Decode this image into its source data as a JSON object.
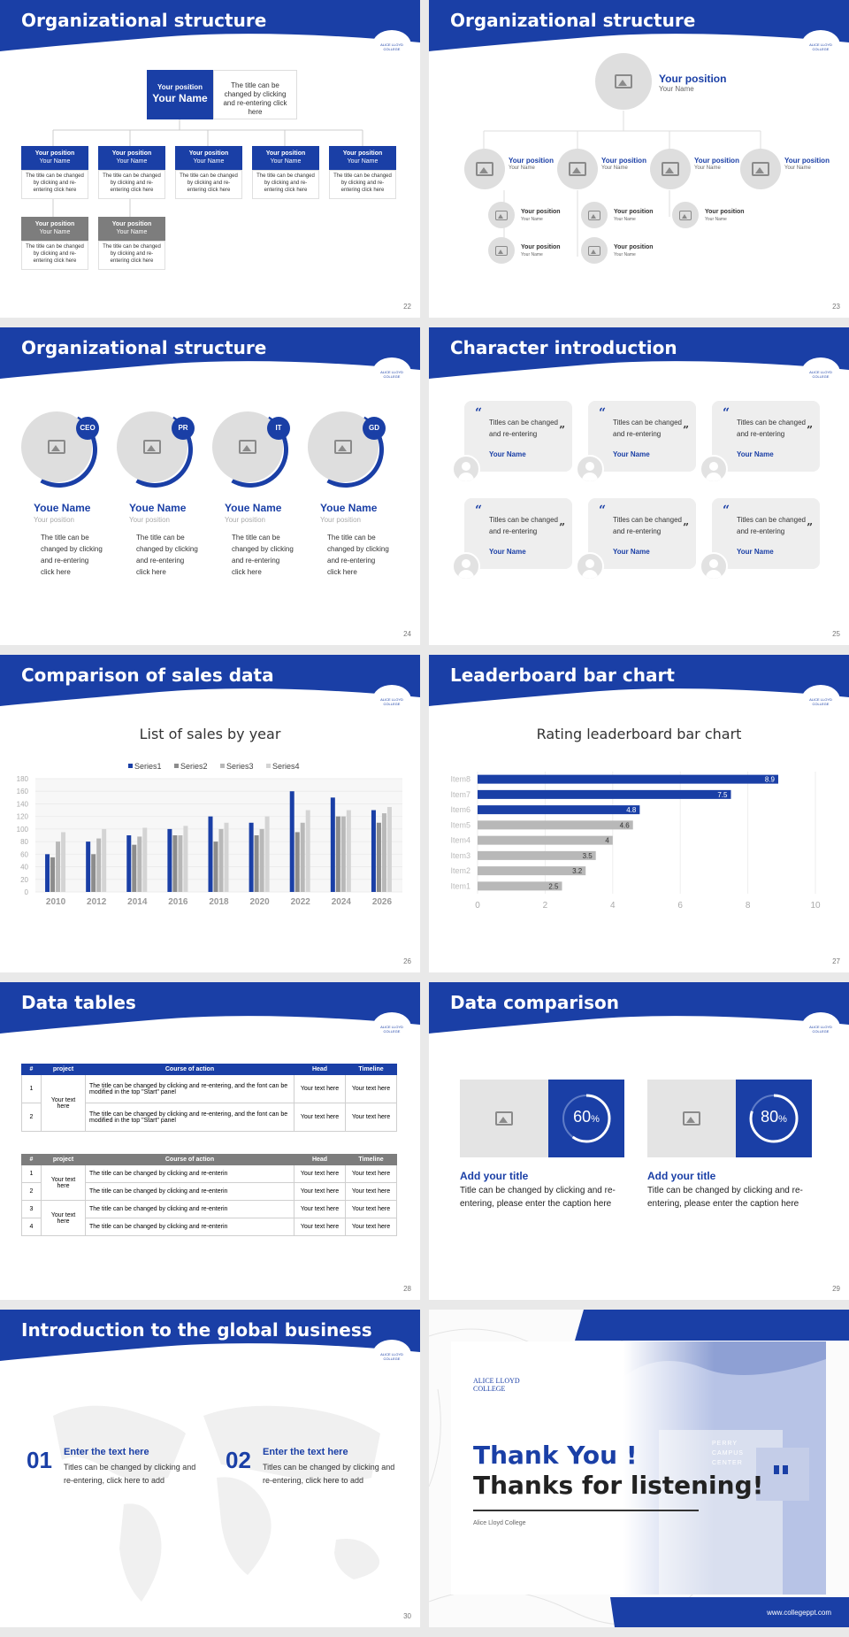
{
  "header_texts": {
    "s22": "Organizational structure",
    "s23": "Organizational structure",
    "s24": "Organizational structure",
    "s25": "Character introduction",
    "s26": "Comparison of sales data",
    "s27": "Leaderboard bar chart",
    "s28": "Data tables",
    "s29": "Data comparison",
    "s30": "Introduction to the global business"
  },
  "page_numbers": {
    "s22": "22",
    "s23": "23",
    "s24": "24",
    "s25": "25",
    "s26": "26",
    "s27": "27",
    "s28": "28",
    "s29": "29",
    "s30": "30"
  },
  "logo_text": "ALICE LLOYD COLLEGE",
  "s22": {
    "top_position": "Your position",
    "top_name": "Your Name",
    "top_desc": "The title can be changed by clicking and re-entering click here",
    "box_position": "Your position",
    "box_name": "Your Name",
    "box_desc": "The title can be changed by clicking and re-entering click here"
  },
  "s23": {
    "top_position": "Your position",
    "top_name": "Your Name",
    "mid_position": "Your position",
    "mid_name": "Your Name",
    "sub_position": "Your position",
    "sub_name": "Your Name"
  },
  "s24": {
    "members": [
      {
        "badge": "CEO",
        "name": "Youe Name",
        "position": "Your position",
        "desc": "The title can be changed by clicking and re-entering click here"
      },
      {
        "badge": "PR",
        "name": "Youe Name",
        "position": "Your position",
        "desc": "The title can be changed by clicking and re-entering click here"
      },
      {
        "badge": "IT",
        "name": "Youe Name",
        "position": "Your position",
        "desc": "The title can be changed by clicking and re-entering click here"
      },
      {
        "badge": "GD",
        "name": "Youe Name",
        "position": "Your position",
        "desc": "The title can be changed by clicking and re-entering click here"
      }
    ]
  },
  "s25": {
    "card_text": "Titles can be changed and re-entering",
    "card_name": "Your Name"
  },
  "s26": {
    "chart_data": {
      "type": "bar",
      "title": "List of sales by year",
      "categories": [
        "2010",
        "2012",
        "2014",
        "2016",
        "2018",
        "2020",
        "2022",
        "2024",
        "2026"
      ],
      "series": [
        {
          "name": "Series1",
          "values": [
            60,
            80,
            90,
            100,
            120,
            110,
            160,
            150,
            130
          ]
        },
        {
          "name": "Series2",
          "values": [
            55,
            60,
            75,
            90,
            80,
            90,
            95,
            120,
            110
          ]
        },
        {
          "name": "Series3",
          "values": [
            80,
            85,
            88,
            90,
            100,
            100,
            110,
            120,
            125
          ]
        },
        {
          "name": "Series4",
          "values": [
            95,
            100,
            102,
            105,
            110,
            120,
            130,
            130,
            135
          ]
        }
      ],
      "ylim": [
        0,
        180
      ],
      "yticks": [
        "0",
        "20",
        "40",
        "60",
        "80",
        "100",
        "120",
        "140",
        "160",
        "180"
      ],
      "legend": "top",
      "colors": [
        "#1a3fa6",
        "#8c8c8c",
        "#b8b8b8",
        "#d4d4d4"
      ]
    }
  },
  "s27": {
    "chart_data": {
      "type": "bar",
      "orientation": "horizontal",
      "title": "Rating leaderboard bar chart",
      "categories": [
        "Item8",
        "Item7",
        "Item6",
        "Item5",
        "Item4",
        "Item3",
        "Item2",
        "Item1"
      ],
      "values": [
        8.9,
        7.5,
        4.8,
        4.6,
        4,
        3.5,
        3.2,
        2.5
      ],
      "labels": [
        "8.9",
        "7.5",
        "4.8",
        "4.6",
        "4",
        "3.5",
        "3.2",
        "2.5"
      ],
      "xlim": [
        0,
        10
      ],
      "xticks": [
        "0",
        "2",
        "4",
        "6",
        "8",
        "10"
      ],
      "colors": {
        "top": "#1a3fa6",
        "rest": "#b8b8b8"
      }
    }
  },
  "s28": {
    "headers": [
      "#",
      "project",
      "Course of action",
      "Head",
      "Timeline"
    ],
    "t1_rows": [
      {
        "n": "1",
        "action": "The title can be changed by clicking and re-entering, and the font can be modified in the top \"Start\" panel",
        "head": "Your text here",
        "time": "Your text here"
      },
      {
        "n": "2",
        "action": "The title can be changed by clicking and re-entering, and the font can be modified in the top \"Start\" panel",
        "head": "Your text here",
        "time": "Your text here"
      }
    ],
    "t1_project": "Your text here",
    "t2_rows": [
      {
        "n": "1",
        "action": "The title can be changed by clicking and re-enterin",
        "head": "Your text here",
        "time": "Your text here"
      },
      {
        "n": "2",
        "action": "The title can be changed by clicking and re-enterin",
        "head": "Your text here",
        "time": "Your text here"
      },
      {
        "n": "3",
        "action": "The title can be changed by clicking and re-enterin",
        "head": "Your text here",
        "time": "Your text here"
      },
      {
        "n": "4",
        "action": "The title can be changed by clicking and re-enterin",
        "head": "Your text here",
        "time": "Your text here"
      }
    ],
    "t2_project_a": "Your text here",
    "t2_project_b": "Your text here"
  },
  "s29": {
    "items": [
      {
        "percent": "60",
        "unit": "%",
        "progress": 0.6,
        "title": "Add your title",
        "desc": "Title can be changed by clicking and re-entering, please enter the caption here"
      },
      {
        "percent": "80",
        "unit": "%",
        "progress": 0.8,
        "title": "Add your title",
        "desc": "Title can be changed by clicking and re-entering, please enter the caption here"
      }
    ]
  },
  "s30": {
    "items": [
      {
        "num": "01",
        "title": "Enter the text here",
        "desc": "Titles can be changed by clicking and re-entering, click here to add"
      },
      {
        "num": "02",
        "title": "Enter the text here",
        "desc": "Titles can be changed by clicking and re-entering, click here to add"
      }
    ]
  },
  "s31": {
    "logo": "ALICE LLOYD COLLEGE",
    "line1": "Thank You !",
    "line2": "Thanks for listening!",
    "college": "Alice Lloyd College",
    "url": "www.collegeppt.com",
    "building_sign": "PERRY CAMPUS CENTER"
  }
}
